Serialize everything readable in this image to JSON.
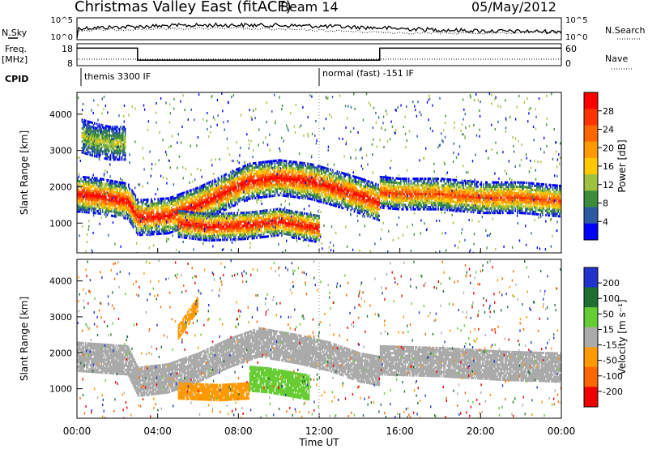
{
  "header": {
    "title": "Christmas Valley East (fitACF)",
    "beam": "Beam 14",
    "date": "05/May/2012"
  },
  "summary": {
    "nsky_label": "N.Sky",
    "nsky_ticks": [
      "10^5",
      "10^0"
    ],
    "nsearch_label": "N.Search",
    "nsearch_ticks": [
      "10^5",
      "10^0"
    ],
    "freq_label": "Freq.",
    "freq_unit": "[MHz]",
    "freq_ticks": [
      "18",
      "8"
    ],
    "nave_label": "Nave",
    "nave_ticks": [
      "60",
      "0"
    ],
    "cpid_label": "CPID",
    "cpid_modes": [
      {
        "name": "themis 3300 IF",
        "start_hour": 0.2
      },
      {
        "name": "normal (fast) -151 IF",
        "start_hour": 12.0
      }
    ],
    "freq_segments_mhz": [
      {
        "from_hour": 0.0,
        "to_hour": 3.0,
        "value": 16.0
      },
      {
        "from_hour": 3.0,
        "to_hour": 15.0,
        "value": 10.5
      },
      {
        "from_hour": 15.0,
        "to_hour": 24.0,
        "value": 16.0
      }
    ]
  },
  "axes": {
    "xlabel": "Time UT",
    "xticks": [
      "00:00",
      "04:00",
      "08:00",
      "12:00",
      "16:00",
      "20:00",
      "00:00"
    ],
    "x_range_hours": [
      0,
      24
    ],
    "ylabel": "Slant Range [km]",
    "yticks": [
      "1000",
      "2000",
      "3000",
      "4000"
    ],
    "y_range_km": [
      180,
      4600
    ]
  },
  "power_colorbar": {
    "label": "Power [dB]",
    "ticks": [
      "28",
      "24",
      "20",
      "16",
      "12",
      "8",
      "4"
    ],
    "colors": [
      "#ff0000",
      "#ff3300",
      "#ff6600",
      "#ff9900",
      "#ffc800",
      "#a0c040",
      "#3c8c3c",
      "#2c5aa0",
      "#0000ff"
    ]
  },
  "velocity_colorbar": {
    "label": "Velocity [m s⁻¹]",
    "ticks": [
      "200",
      "100",
      "50",
      "15",
      "-15",
      "-50",
      "-100",
      "-200"
    ],
    "colors": [
      "#2233cc",
      "#1f7030",
      "#66cc33",
      "#aaaaaa",
      "#ff9900",
      "#ff6600",
      "#ee0000"
    ]
  },
  "chart_data": [
    {
      "type": "heatmap",
      "name": "power",
      "quantity": "Power [dB]",
      "x_range_hours": [
        0,
        24
      ],
      "y_range_km": [
        180,
        4600
      ],
      "echo_bands": [
        {
          "points": [
            [
              0.0,
              1800
            ],
            [
              1.0,
              1750
            ],
            [
              2.5,
              1600
            ],
            [
              3.0,
              1150
            ],
            [
              4.5,
              1200
            ],
            [
              6.0,
              1500
            ],
            [
              7.5,
              1900
            ],
            [
              8.5,
              2150
            ],
            [
              10.0,
              2250
            ],
            [
              11.5,
              2150
            ],
            [
              12.5,
              2000
            ],
            [
              14.0,
              1750
            ],
            [
              15.0,
              1550
            ]
          ],
          "width_km": 480,
          "peak_db": 28
        },
        {
          "points": [
            [
              5.0,
              1000
            ],
            [
              6.5,
              900
            ],
            [
              8.5,
              950
            ],
            [
              10.0,
              1050
            ],
            [
              11.0,
              950
            ],
            [
              12.0,
              850
            ]
          ],
          "width_km": 380,
          "peak_db": 28
        },
        {
          "points": [
            [
              15.0,
              1850
            ],
            [
              16.0,
              1800
            ],
            [
              18.0,
              1800
            ],
            [
              20.0,
              1700
            ],
            [
              22.0,
              1700
            ],
            [
              24.0,
              1600
            ]
          ],
          "width_km": 420,
          "peak_db": 24
        },
        {
          "points": [
            [
              0.2,
              3400
            ],
            [
              0.8,
              3300
            ],
            [
              1.6,
              3200
            ],
            [
              2.4,
              3200
            ]
          ],
          "width_km": 450,
          "peak_db": 12
        }
      ]
    },
    {
      "type": "heatmap",
      "name": "velocity",
      "quantity": "Velocity [m s⁻¹]",
      "x_range_hours": [
        0,
        24
      ],
      "y_range_km": [
        180,
        4600
      ],
      "echo_bands": [
        {
          "points": [
            [
              0.0,
              1900
            ],
            [
              2.5,
              1800
            ],
            [
              3.0,
              1200
            ],
            [
              4.5,
              1300
            ],
            [
              6.0,
              1600
            ],
            [
              7.5,
              2000
            ],
            [
              9.0,
              2300
            ],
            [
              11.0,
              2100
            ],
            [
              12.5,
              1900
            ],
            [
              14.0,
              1600
            ],
            [
              15.0,
              1500
            ]
          ],
          "width_km": 400,
          "v_ms": 0
        },
        {
          "points": [
            [
              5.0,
              950
            ],
            [
              7.0,
              900
            ],
            [
              8.5,
              950
            ]
          ],
          "width_km": 220,
          "v_ms": -40
        },
        {
          "points": [
            [
              8.5,
              1300
            ],
            [
              9.5,
              1250
            ],
            [
              10.5,
              1150
            ],
            [
              11.5,
              1050
            ]
          ],
          "width_km": 350,
          "v_ms": 60
        },
        {
          "points": [
            [
              15.0,
              1800
            ],
            [
              18.0,
              1750
            ],
            [
              21.0,
              1650
            ],
            [
              24.0,
              1600
            ]
          ],
          "width_km": 400,
          "v_ms": 0
        },
        {
          "points": [
            [
              5.0,
              2600
            ],
            [
              5.5,
              3000
            ],
            [
              6.0,
              3400
            ]
          ],
          "width_km": 200,
          "v_ms": -60
        }
      ]
    }
  ]
}
